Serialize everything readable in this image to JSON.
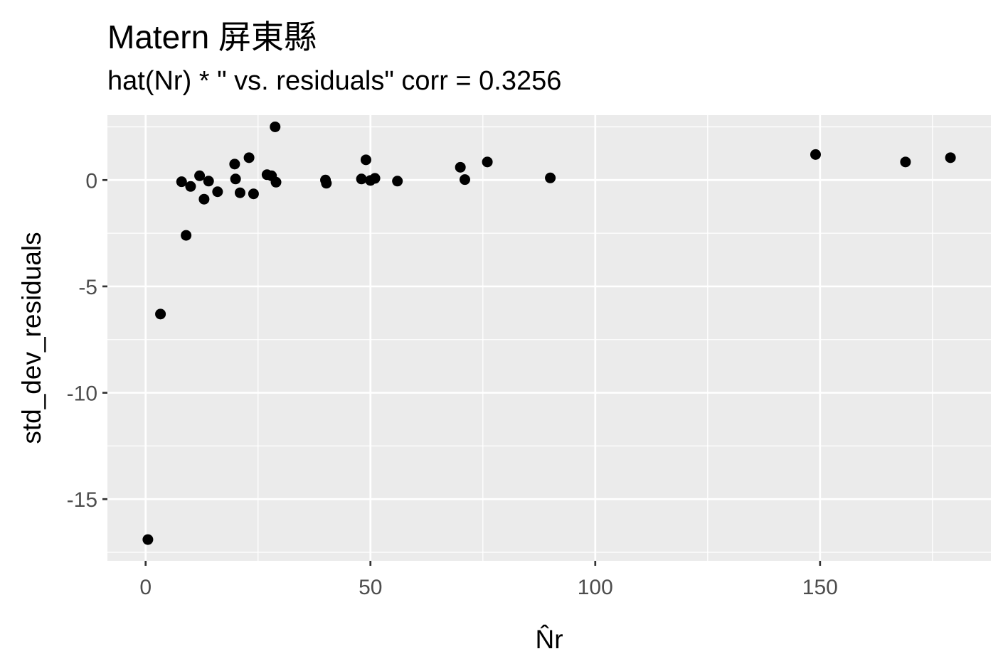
{
  "chart_data": {
    "type": "scatter",
    "title": "Matern 屏東縣",
    "subtitle": "hat(Nr) * \"  vs. residuals\" corr = 0.3256",
    "xlabel": "N̂r",
    "ylabel": "std_dev_residuals",
    "xlim": [
      -8.5,
      188
    ],
    "ylim": [
      -17.9,
      3.05
    ],
    "xticks": [
      0,
      50,
      100,
      150
    ],
    "xtick_labels": [
      "0",
      "50",
      "100",
      "150"
    ],
    "yticks": [
      0,
      -5,
      -10,
      -15
    ],
    "ytick_labels": [
      "0",
      "-5",
      "-10",
      "-15"
    ],
    "grid": true,
    "legend": "none",
    "colors": {
      "panel": "#ebebeb",
      "grid": "#ffffff",
      "point": "#000000"
    },
    "points": [
      {
        "x": 0.5,
        "y": -16.9
      },
      {
        "x": 3.3,
        "y": -6.3
      },
      {
        "x": 8.0,
        "y": -0.08
      },
      {
        "x": 9.0,
        "y": -2.6
      },
      {
        "x": 10.0,
        "y": -0.3
      },
      {
        "x": 12.0,
        "y": 0.2
      },
      {
        "x": 13.0,
        "y": -0.9
      },
      {
        "x": 14.0,
        "y": -0.05
      },
      {
        "x": 16.0,
        "y": -0.55
      },
      {
        "x": 19.8,
        "y": 0.75
      },
      {
        "x": 20.0,
        "y": 0.05
      },
      {
        "x": 21.0,
        "y": -0.6
      },
      {
        "x": 23.0,
        "y": 1.05
      },
      {
        "x": 24.0,
        "y": -0.65
      },
      {
        "x": 27.0,
        "y": 0.25
      },
      {
        "x": 28.0,
        "y": 0.2
      },
      {
        "x": 28.8,
        "y": 2.5
      },
      {
        "x": 29.0,
        "y": -0.1
      },
      {
        "x": 40.0,
        "y": 0.0
      },
      {
        "x": 40.2,
        "y": -0.15
      },
      {
        "x": 48.0,
        "y": 0.05
      },
      {
        "x": 49.0,
        "y": 0.95
      },
      {
        "x": 50.0,
        "y": -0.02
      },
      {
        "x": 51.0,
        "y": 0.08
      },
      {
        "x": 56.0,
        "y": -0.05
      },
      {
        "x": 70.0,
        "y": 0.6
      },
      {
        "x": 71.0,
        "y": 0.02
      },
      {
        "x": 76.0,
        "y": 0.85
      },
      {
        "x": 90.0,
        "y": 0.1
      },
      {
        "x": 149.0,
        "y": 1.2
      },
      {
        "x": 169.0,
        "y": 0.85
      },
      {
        "x": 179.0,
        "y": 1.05
      }
    ]
  }
}
